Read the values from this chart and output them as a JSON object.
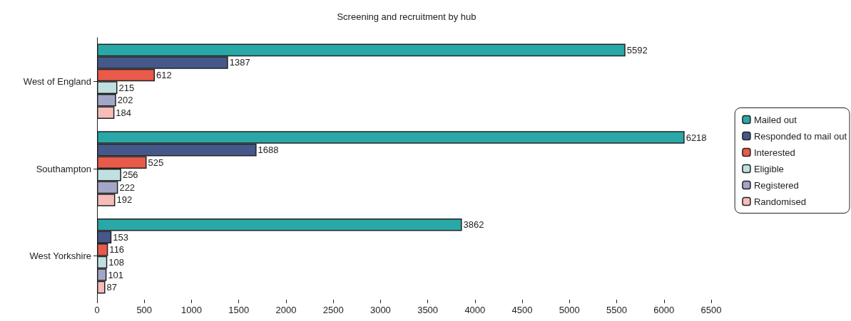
{
  "chart_data": {
    "type": "bar",
    "orientation": "horizontal",
    "title": "Screening and recruitment by hub",
    "categories": [
      "West of England",
      "Southampton",
      "West Yorkshire"
    ],
    "series": [
      {
        "name": "Mailed out",
        "color": "#2aa8a8",
        "values": [
          5592,
          6218,
          3862
        ]
      },
      {
        "name": "Responded to mail out",
        "color": "#46588a",
        "values": [
          1387,
          1688,
          153
        ]
      },
      {
        "name": "Interested",
        "color": "#e85a4a",
        "values": [
          612,
          525,
          116
        ]
      },
      {
        "name": "Eligible",
        "color": "#c0e0e0",
        "values": [
          215,
          256,
          108
        ]
      },
      {
        "name": "Registered",
        "color": "#a3a6c6",
        "values": [
          202,
          222,
          101
        ]
      },
      {
        "name": "Randomised",
        "color": "#f5bcb8",
        "values": [
          184,
          192,
          87
        ]
      }
    ],
    "xlim": [
      0,
      6500
    ],
    "xticks": [
      0,
      500,
      1000,
      1500,
      2000,
      2500,
      3000,
      3500,
      4000,
      4500,
      5000,
      5500,
      6000,
      6500
    ],
    "data_labels": true,
    "grid": false,
    "legend": "right"
  }
}
